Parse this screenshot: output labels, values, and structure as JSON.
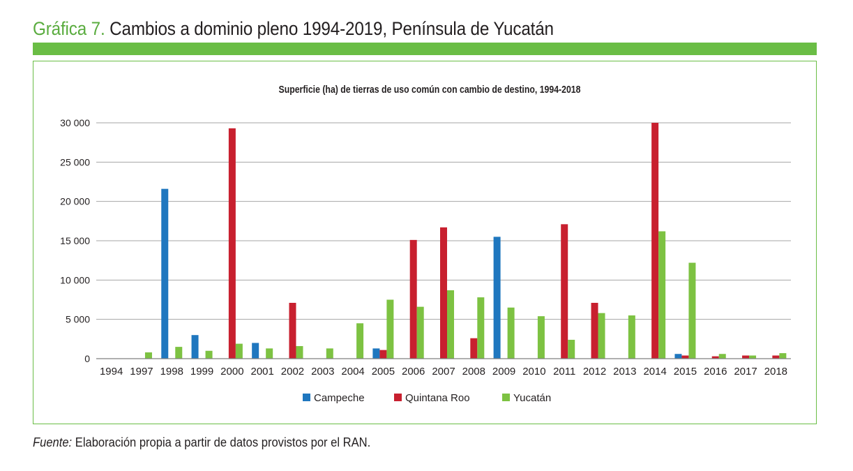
{
  "figure": {
    "label": "Gráfica 7.",
    "title": "Cambios a dominio pleno 1994-2019, Península de Yucatán",
    "source_label": "Fuente:",
    "source_text": "Elaboración propia a partir de datos provistos por el RAN."
  },
  "chart_data": {
    "type": "bar",
    "title": "Superficie (ha) de tierras de uso común con cambio de destino, 1994-2018",
    "xlabel": "",
    "ylabel": "",
    "ylim": [
      0,
      30000
    ],
    "yticks": [
      0,
      5000,
      10000,
      15000,
      20000,
      25000,
      30000
    ],
    "ytick_labels": [
      "0",
      "5 000",
      "10 000",
      "15 000",
      "20 000",
      "25 000",
      "30 000"
    ],
    "grid": true,
    "legend_position": "bottom",
    "categories": [
      "1994",
      "1997",
      "1998",
      "1999",
      "2000",
      "2001",
      "2002",
      "2003",
      "2004",
      "2005",
      "2006",
      "2007",
      "2008",
      "2009",
      "2010",
      "2011",
      "2012",
      "2013",
      "2014",
      "2015",
      "2016",
      "2017",
      "2018"
    ],
    "series": [
      {
        "name": "Campeche",
        "color": "#1f77bf",
        "values": [
          0,
          0,
          21600,
          3000,
          0,
          2000,
          0,
          0,
          0,
          1300,
          0,
          0,
          0,
          15500,
          0,
          0,
          0,
          0,
          0,
          600,
          0,
          0,
          0
        ]
      },
      {
        "name": "Quintana Roo",
        "color": "#c8202f",
        "values": [
          0,
          0,
          0,
          0,
          29300,
          0,
          7100,
          0,
          0,
          1100,
          15100,
          16700,
          2600,
          0,
          0,
          17100,
          7100,
          0,
          30000,
          400,
          300,
          400,
          400
        ]
      },
      {
        "name": "Yucatán",
        "color": "#7dc242",
        "values": [
          0,
          800,
          1500,
          1000,
          1900,
          1300,
          1600,
          1300,
          4500,
          7500,
          6600,
          8700,
          7800,
          6500,
          5400,
          2400,
          5800,
          5500,
          16200,
          12200,
          600,
          400,
          700
        ]
      }
    ]
  }
}
